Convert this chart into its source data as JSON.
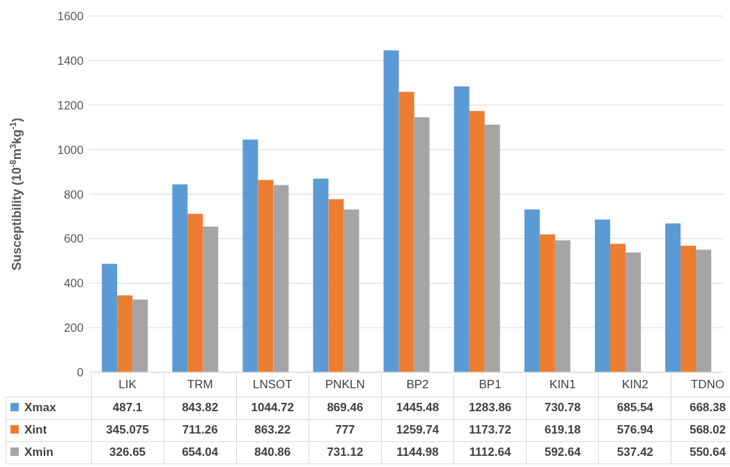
{
  "chart_data": {
    "type": "bar",
    "ylabel": "Susceptibility (10$^{-8}$m$^{3}$kg$^{-1}$)",
    "categories": [
      "LIK",
      "TRM",
      "LNSOT",
      "PNKLN",
      "BP2",
      "BP1",
      "KIN1",
      "KIN2",
      "TDNO"
    ],
    "series": [
      {
        "name": "Xmax",
        "color": "#5b9bd5",
        "values": [
          487.1,
          843.82,
          1044.72,
          869.46,
          1445.48,
          1283.86,
          730.78,
          685.54,
          668.38
        ]
      },
      {
        "name": "Xint",
        "color": "#ed7d31",
        "values": [
          345.075,
          711.26,
          863.22,
          777,
          1259.74,
          1173.72,
          619.18,
          576.94,
          568.02
        ]
      },
      {
        "name": "Xmin",
        "color": "#a5a5a5",
        "values": [
          326.65,
          654.04,
          840.86,
          731.12,
          1144.98,
          1112.64,
          592.64,
          537.42,
          550.64
        ]
      }
    ],
    "ylim": [
      0,
      1600
    ],
    "yticks": [
      0,
      200,
      400,
      600,
      800,
      1000,
      1200,
      1400,
      1600
    ],
    "grid": "y",
    "legend": "bottom",
    "data_labels": true
  }
}
